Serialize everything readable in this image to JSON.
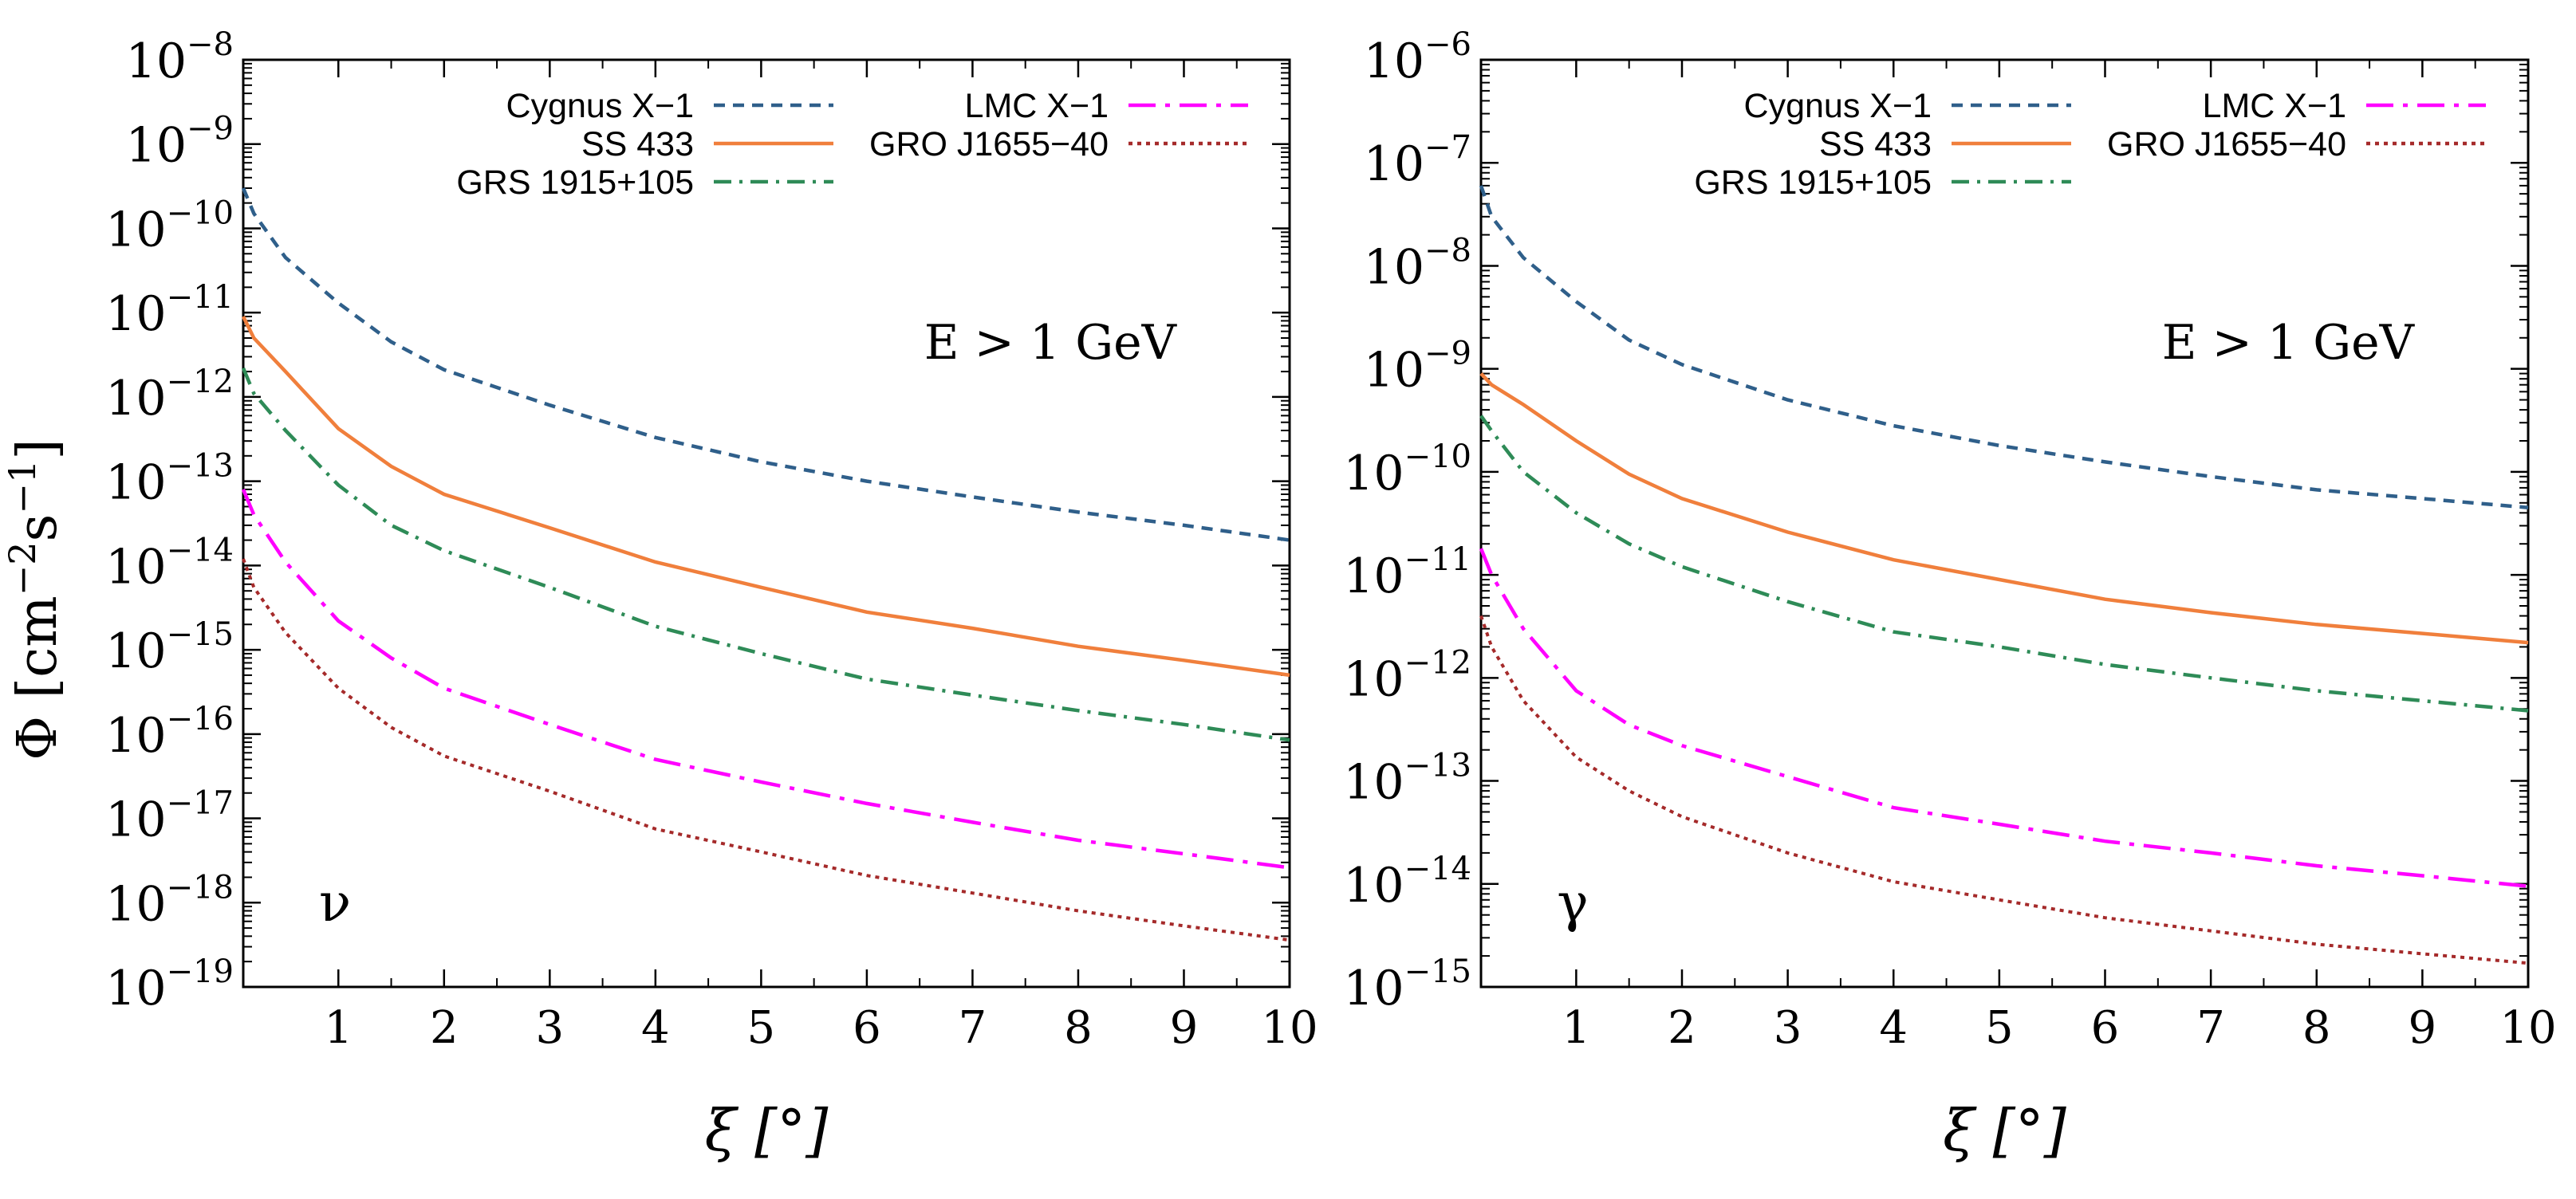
{
  "figure": {
    "ylabel_main": "Φ [cm",
    "ylabel_sup1": "−2",
    "ylabel_mid": "s",
    "ylabel_sup2": "−1",
    "ylabel_end": "]"
  },
  "legend": {
    "entries": [
      {
        "label": "Cygnus X−1",
        "color": "#2f5f8a",
        "dash": "dashed"
      },
      {
        "label": "SS 433",
        "color": "#f07f3c",
        "dash": "solid"
      },
      {
        "label": "GRS 1915+105",
        "color": "#2e8b57",
        "dash": "dashdot"
      },
      {
        "label": "LMC X−1",
        "color": "#ff00ff",
        "dash": "longdashdot"
      },
      {
        "label": "GRO J1655−40",
        "color": "#a52a2a",
        "dash": "dotted"
      }
    ]
  },
  "chart_data": [
    {
      "type": "line",
      "yscale": "log",
      "xlabel": "ξ [°]",
      "annotation": "E > 1 GeV",
      "particle_label": "ν",
      "xlim": [
        0.1,
        10
      ],
      "ylim_exp": [
        -19,
        -8
      ],
      "xticks": [
        1,
        2,
        3,
        4,
        5,
        6,
        7,
        8,
        9,
        10
      ],
      "x": [
        0.1,
        0.2,
        0.5,
        1,
        1.5,
        2,
        3,
        4,
        5,
        6,
        7,
        8,
        9,
        10
      ],
      "series": [
        {
          "name": "Cygnus X−1",
          "values": [
            3e-10,
            1.5e-10,
            4.5e-11,
            1.3e-11,
            4.5e-12,
            2.1e-12,
            8e-13,
            3.3e-13,
            1.7e-13,
            1e-13,
            6.5e-14,
            4.3e-14,
            3e-14,
            2e-14
          ]
        },
        {
          "name": "SS 433",
          "values": [
            9e-12,
            5e-12,
            2e-12,
            4.2e-13,
            1.5e-13,
            7e-14,
            2.8e-14,
            1.1e-14,
            5.5e-15,
            2.8e-15,
            1.8e-15,
            1.1e-15,
            7.5e-16,
            5e-16
          ]
        },
        {
          "name": "GRS 1915+105",
          "values": [
            2.2e-12,
            1.1e-12,
            4e-13,
            9e-14,
            3e-14,
            1.5e-14,
            5.5e-15,
            1.9e-15,
            9e-16,
            4.5e-16,
            2.9e-16,
            1.9e-16,
            1.3e-16,
            8.5e-17
          ]
        },
        {
          "name": "LMC X−1",
          "values": [
            8e-14,
            4e-14,
            1.1e-14,
            2.2e-15,
            8e-16,
            3.5e-16,
            1.3e-16,
            5e-17,
            2.7e-17,
            1.5e-17,
            9e-18,
            5.5e-18,
            3.8e-18,
            2.6e-18
          ]
        },
        {
          "name": "GRO J1655−40",
          "values": [
            1.2e-14,
            5.5e-15,
            1.6e-15,
            3.5e-16,
            1.2e-16,
            5.5e-17,
            2.1e-17,
            7.5e-18,
            4e-18,
            2.1e-18,
            1.3e-18,
            8e-19,
            5.3e-19,
            3.6e-19
          ]
        }
      ]
    },
    {
      "type": "line",
      "yscale": "log",
      "xlabel": "ξ [°]",
      "annotation": "E > 1 GeV",
      "particle_label": "γ",
      "xlim": [
        0.1,
        10
      ],
      "ylim_exp": [
        -15,
        -6
      ],
      "xticks": [
        1,
        2,
        3,
        4,
        5,
        6,
        7,
        8,
        9,
        10
      ],
      "x": [
        0.1,
        0.2,
        0.5,
        1,
        1.5,
        2,
        3,
        4,
        5,
        6,
        7,
        8,
        9,
        10
      ],
      "series": [
        {
          "name": "Cygnus X−1",
          "values": [
            6e-08,
            3e-08,
            1.2e-08,
            4.5e-09,
            1.9e-09,
            1.1e-09,
            5e-10,
            2.8e-10,
            1.8e-10,
            1.25e-10,
            9e-11,
            6.7e-11,
            5.5e-11,
            4.5e-11
          ]
        },
        {
          "name": "SS 433",
          "values": [
            9e-10,
            7e-10,
            4.5e-10,
            2e-10,
            9.5e-11,
            5.5e-11,
            2.6e-11,
            1.4e-11,
            9e-12,
            5.8e-12,
            4.3e-12,
            3.3e-12,
            2.7e-12,
            2.2e-12
          ]
        },
        {
          "name": "GRS 1915+105",
          "values": [
            3.5e-10,
            2.5e-10,
            1e-10,
            4e-11,
            2e-11,
            1.2e-11,
            5.5e-12,
            2.8e-12,
            2e-12,
            1.35e-12,
            1e-12,
            7.5e-13,
            6e-13,
            4.8e-13
          ]
        },
        {
          "name": "LMC X−1",
          "values": [
            1.8e-11,
            1e-11,
            3e-12,
            7.5e-13,
            3.5e-13,
            2.2e-13,
            1.1e-13,
            5.5e-14,
            3.8e-14,
            2.6e-14,
            2e-14,
            1.5e-14,
            1.2e-14,
            9.5e-15
          ]
        },
        {
          "name": "GRO J1655−40",
          "values": [
            4e-12,
            2e-12,
            6e-13,
            1.7e-13,
            8e-14,
            4.5e-14,
            2e-14,
            1.05e-14,
            7e-15,
            4.7e-15,
            3.5e-15,
            2.6e-15,
            2.1e-15,
            1.7e-15
          ]
        }
      ]
    }
  ]
}
